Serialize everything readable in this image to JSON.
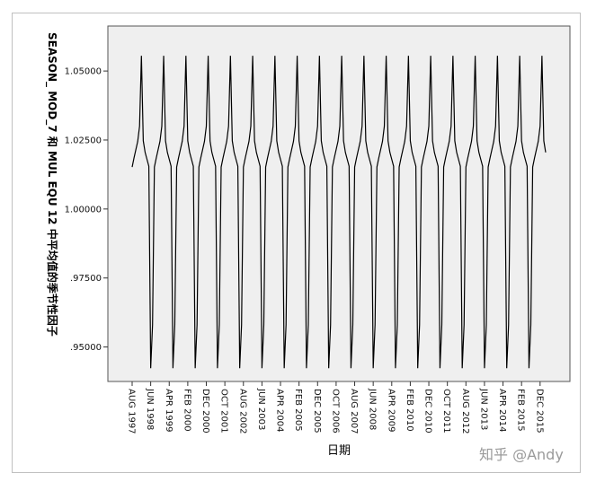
{
  "chart_data": {
    "type": "line",
    "title": "",
    "xlabel": "日期",
    "ylabel": "SEASON_ MOD_7 和 MUL EQU 12 中平均值的季节性因子",
    "ylim": [
      0.9375,
      1.0663
    ],
    "yticks": [
      0.95,
      0.975,
      1.0,
      1.025,
      1.05
    ],
    "ytick_labels": [
      ".95000",
      ".97500",
      "1.00000",
      "1.02500",
      "1.05000"
    ],
    "xtick_labels": [
      "AUG 1997",
      "JUN 1998",
      "APR 1999",
      "FEB 2000",
      "DEC 2000",
      "OCT 2001",
      "AUG 2002",
      "JUN 2003",
      "APR 2004",
      "FEB 2005",
      "DEC 2005",
      "OCT 2006",
      "AUG 2007",
      "JUN 2008",
      "APR 2009",
      "FEB 2010",
      "DEC 2010",
      "OCT 2011",
      "AUG 2012",
      "JUN 2013",
      "APR 2014",
      "FEB 2015",
      "DEC 2015"
    ],
    "start": "1997-08",
    "end": "2016-03",
    "season_pattern": [
      {
        "month": 1,
        "value": 1.0555
      },
      {
        "month": 2,
        "value": 1.0247
      },
      {
        "month": 3,
        "value": 1.0205
      },
      {
        "month": 4,
        "value": 1.018
      },
      {
        "month": 5,
        "value": 1.0155
      },
      {
        "month": 6,
        "value": 0.9423
      },
      {
        "month": 7,
        "value": 0.958
      },
      {
        "month": 8,
        "value": 1.0152
      },
      {
        "month": 9,
        "value": 1.0185
      },
      {
        "month": 10,
        "value": 1.0215
      },
      {
        "month": 11,
        "value": 1.0245
      },
      {
        "month": 12,
        "value": 1.03
      }
    ],
    "line_color": "#000000",
    "plot_background": "#efefef",
    "grid": false,
    "legend": "none"
  },
  "watermark": "知乎 @Andy"
}
